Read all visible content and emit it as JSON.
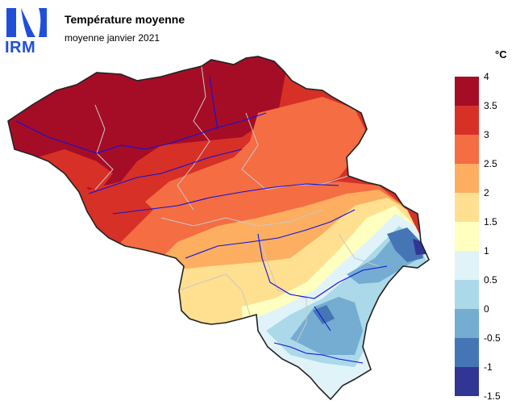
{
  "header": {
    "logo_text": "IRM",
    "title": "Température moyenne",
    "subtitle": "moyenne janvier 2021"
  },
  "legend": {
    "unit": "°C",
    "labels": [
      "4",
      "3.5",
      "3",
      "2.5",
      "2",
      "1.5",
      "1",
      "0.5",
      "0",
      "-0.5",
      "-1",
      "-1.5"
    ],
    "colors": [
      "#a50d26",
      "#d73027",
      "#f46d43",
      "#fdae61",
      "#fee090",
      "#ffffbf",
      "#e0f3f8",
      "#abd9e9",
      "#74add1",
      "#4575b4",
      "#313695"
    ]
  },
  "colors": {
    "logo": "#1f4fd8",
    "rivers": "#1010e0",
    "borders": "#222222",
    "admin_lines": "#c8c8c8"
  }
}
